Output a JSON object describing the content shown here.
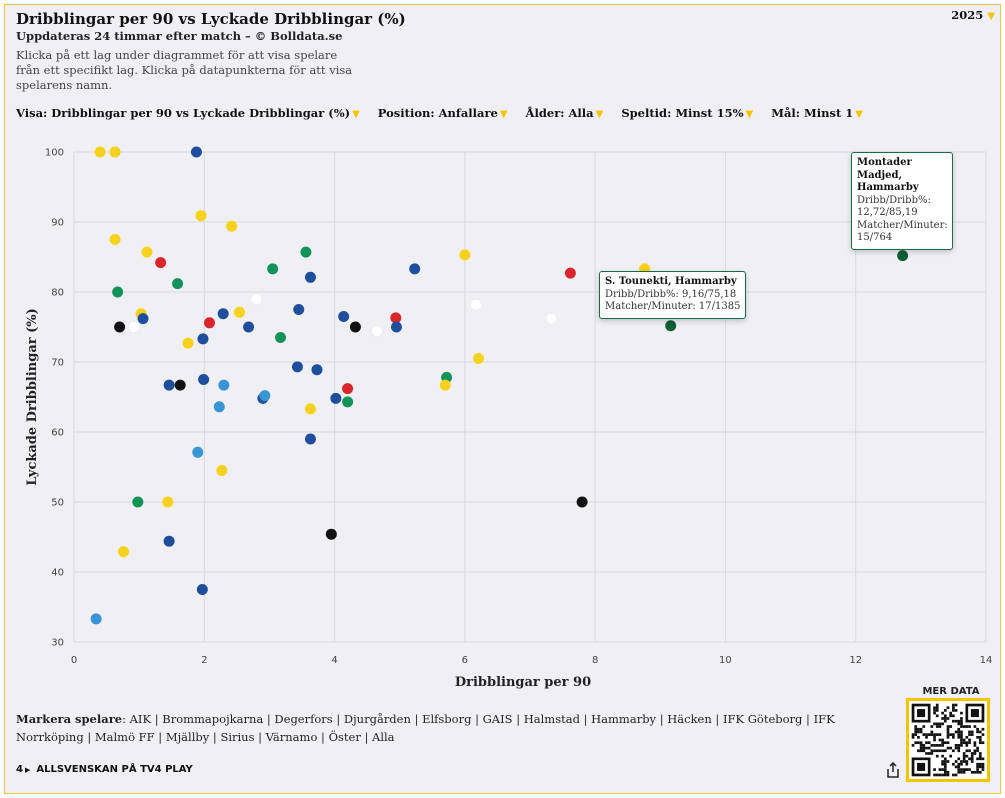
{
  "header": {
    "title": "Dribblingar per 90 vs Lyckade Dribblingar (%)",
    "subtitle": "Uppdateras 24 timmar efter match – © Bolldata.se",
    "description": "Klicka på ett lag under diagrammet för att visa spelare från ett specifikt lag. Klicka på datapunkterna för att visa spelarens namn.",
    "year": "2025"
  },
  "filters": [
    {
      "label": "Visa:",
      "value": "Dribblingar per 90 vs Lyckade Dribblingar (%)"
    },
    {
      "label": "Position:",
      "value": "Anfallare"
    },
    {
      "label": "Ålder:",
      "value": "Alla"
    },
    {
      "label": "Speltid:",
      "value": "Minst 15%"
    },
    {
      "label": "Mål:",
      "value": "Minst 1"
    }
  ],
  "colors": {
    "yellow": "#f7d21c",
    "dblue": "#1f4e9c",
    "lblue": "#3a95d4",
    "green": "#12935a",
    "dgreen": "#0d5e35",
    "red": "#d9262b",
    "black": "#111111",
    "white": "#ffffff"
  },
  "chart_data": {
    "type": "scatter",
    "xlabel": "Dribblingar per 90",
    "ylabel": "Lyckade Dribblingar (%)",
    "xlim": [
      0,
      14
    ],
    "ylim": [
      30,
      100
    ],
    "xticks": [
      0,
      2,
      4,
      6,
      8,
      10,
      12,
      14
    ],
    "yticks": [
      30,
      40,
      50,
      60,
      70,
      80,
      90,
      100
    ],
    "grid": true,
    "points": [
      {
        "x": 0.4,
        "y": 100,
        "c": "yellow"
      },
      {
        "x": 0.63,
        "y": 100,
        "c": "yellow"
      },
      {
        "x": 1.88,
        "y": 100,
        "c": "dblue"
      },
      {
        "x": 1.95,
        "y": 90.9,
        "c": "yellow"
      },
      {
        "x": 2.42,
        "y": 89.4,
        "c": "yellow"
      },
      {
        "x": 0.63,
        "y": 87.5,
        "c": "yellow"
      },
      {
        "x": 1.12,
        "y": 85.7,
        "c": "yellow"
      },
      {
        "x": 3.56,
        "y": 85.7,
        "c": "green"
      },
      {
        "x": 1.33,
        "y": 84.2,
        "c": "red"
      },
      {
        "x": 3.05,
        "y": 83.3,
        "c": "green"
      },
      {
        "x": 5.23,
        "y": 83.3,
        "c": "dblue"
      },
      {
        "x": 3.63,
        "y": 82.1,
        "c": "dblue"
      },
      {
        "x": 6.0,
        "y": 85.3,
        "c": "yellow"
      },
      {
        "x": 7.62,
        "y": 82.7,
        "c": "red"
      },
      {
        "x": 8.76,
        "y": 83.3,
        "c": "yellow"
      },
      {
        "x": 12.72,
        "y": 85.19,
        "c": "dgreen"
      },
      {
        "x": 9.16,
        "y": 75.18,
        "c": "dgreen"
      },
      {
        "x": 1.59,
        "y": 81.2,
        "c": "green"
      },
      {
        "x": 0.67,
        "y": 80.0,
        "c": "green"
      },
      {
        "x": 2.8,
        "y": 79.0,
        "c": "white"
      },
      {
        "x": 6.17,
        "y": 78.2,
        "c": "white"
      },
      {
        "x": 7.33,
        "y": 76.2,
        "c": "white"
      },
      {
        "x": 3.45,
        "y": 77.5,
        "c": "dblue"
      },
      {
        "x": 2.29,
        "y": 76.9,
        "c": "dblue"
      },
      {
        "x": 2.54,
        "y": 77.1,
        "c": "yellow"
      },
      {
        "x": 1.03,
        "y": 76.9,
        "c": "yellow"
      },
      {
        "x": 1.06,
        "y": 76.2,
        "c": "dblue"
      },
      {
        "x": 4.14,
        "y": 76.5,
        "c": "dblue"
      },
      {
        "x": 4.94,
        "y": 76.3,
        "c": "red"
      },
      {
        "x": 2.08,
        "y": 75.6,
        "c": "red"
      },
      {
        "x": 0.7,
        "y": 75.0,
        "c": "black"
      },
      {
        "x": 0.92,
        "y": 75.0,
        "c": "white"
      },
      {
        "x": 2.68,
        "y": 75.0,
        "c": "dblue"
      },
      {
        "x": 4.32,
        "y": 75.0,
        "c": "black"
      },
      {
        "x": 4.65,
        "y": 74.4,
        "c": "white"
      },
      {
        "x": 4.95,
        "y": 75.0,
        "c": "dblue"
      },
      {
        "x": 3.17,
        "y": 73.5,
        "c": "green"
      },
      {
        "x": 1.98,
        "y": 73.3,
        "c": "dblue"
      },
      {
        "x": 1.75,
        "y": 72.7,
        "c": "yellow"
      },
      {
        "x": 6.21,
        "y": 70.5,
        "c": "yellow"
      },
      {
        "x": 3.43,
        "y": 69.3,
        "c": "dblue"
      },
      {
        "x": 3.73,
        "y": 68.9,
        "c": "dblue"
      },
      {
        "x": 5.72,
        "y": 67.8,
        "c": "green"
      },
      {
        "x": 1.99,
        "y": 67.5,
        "c": "dblue"
      },
      {
        "x": 1.46,
        "y": 66.7,
        "c": "dblue"
      },
      {
        "x": 1.63,
        "y": 66.7,
        "c": "black"
      },
      {
        "x": 2.3,
        "y": 66.7,
        "c": "lblue"
      },
      {
        "x": 5.7,
        "y": 66.7,
        "c": "yellow"
      },
      {
        "x": 4.2,
        "y": 66.2,
        "c": "red"
      },
      {
        "x": 2.9,
        "y": 64.8,
        "c": "dblue"
      },
      {
        "x": 2.93,
        "y": 65.2,
        "c": "lblue"
      },
      {
        "x": 4.02,
        "y": 64.8,
        "c": "dblue"
      },
      {
        "x": 4.2,
        "y": 64.3,
        "c": "green"
      },
      {
        "x": 2.23,
        "y": 63.6,
        "c": "lblue"
      },
      {
        "x": 3.63,
        "y": 63.3,
        "c": "yellow"
      },
      {
        "x": 3.63,
        "y": 59.0,
        "c": "dblue"
      },
      {
        "x": 1.9,
        "y": 57.1,
        "c": "lblue"
      },
      {
        "x": 2.27,
        "y": 54.5,
        "c": "yellow"
      },
      {
        "x": 0.98,
        "y": 50.0,
        "c": "green"
      },
      {
        "x": 1.44,
        "y": 50.0,
        "c": "yellow"
      },
      {
        "x": 7.8,
        "y": 50.0,
        "c": "black"
      },
      {
        "x": 3.95,
        "y": 45.4,
        "c": "black"
      },
      {
        "x": 1.46,
        "y": 44.4,
        "c": "dblue"
      },
      {
        "x": 0.76,
        "y": 42.9,
        "c": "yellow"
      },
      {
        "x": 1.97,
        "y": 37.5,
        "c": "dblue"
      },
      {
        "x": 0.34,
        "y": 33.3,
        "c": "lblue"
      }
    ],
    "annotations": [
      {
        "name": "S. Tounekti, Hammarby",
        "line1": "Dribb/Dribb%: 9,16/75,18",
        "line2": "Matcher/Minuter: 17/1385"
      },
      {
        "name": "Montader Madjed, Hammarby",
        "line1": "Dribb/Dribb%: 12,72/85,19",
        "line2": "Matcher/Minuter: 15/764"
      }
    ]
  },
  "legend": {
    "label": "Markera spelare",
    "teams": [
      "AIK",
      "Brommapojkarna",
      "Degerfors",
      "Djurgården",
      "Elfsborg",
      "GAIS",
      "Halmstad",
      "Hammarby",
      "Häcken",
      "IFK Göteborg",
      "IFK Norrköping",
      "Malmö FF",
      "Mjällby",
      "Sirius",
      "Värnamo",
      "Öster",
      "Alla"
    ]
  },
  "footer": {
    "tv4_logo": "4",
    "tv4_text": "ALLSVENSKAN PÅ TV4 PLAY",
    "mer_data": "MER DATA"
  }
}
